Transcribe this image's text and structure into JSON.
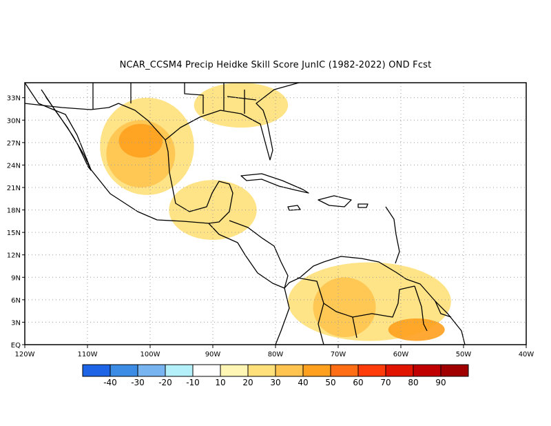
{
  "title": "NCAR_CCSM4 Precip Heidke Skill Score JunIC (1982-2022) OND Fcst",
  "map": {
    "lon_range": [
      -120,
      -40
    ],
    "lat_range": [
      0,
      35
    ],
    "lon_ticks": [
      {
        "lon": -120,
        "label": "120W"
      },
      {
        "lon": -110,
        "label": "110W"
      },
      {
        "lon": -100,
        "label": "100W"
      },
      {
        "lon": -90,
        "label": "90W"
      },
      {
        "lon": -80,
        "label": "80W"
      },
      {
        "lon": -70,
        "label": "70W"
      },
      {
        "lon": -60,
        "label": "60W"
      },
      {
        "lon": -50,
        "label": "50W"
      },
      {
        "lon": -40,
        "label": "40W"
      }
    ],
    "lat_ticks": [
      {
        "lat": 0,
        "label": "EQ"
      },
      {
        "lat": 3,
        "label": "3N"
      },
      {
        "lat": 6,
        "label": "6N"
      },
      {
        "lat": 9,
        "label": "9N"
      },
      {
        "lat": 12,
        "label": "12N"
      },
      {
        "lat": 15,
        "label": "15N"
      },
      {
        "lat": 18,
        "label": "18N"
      },
      {
        "lat": 21,
        "label": "21N"
      },
      {
        "lat": 24,
        "label": "24N"
      },
      {
        "lat": 27,
        "label": "27N"
      },
      {
        "lat": 30,
        "label": "30N"
      },
      {
        "lat": 33,
        "label": "33N"
      }
    ],
    "grid": "dotted"
  },
  "colorbar": {
    "colors": [
      "#1e64e6",
      "#3c8ce6",
      "#78b4f0",
      "#b4f0fa",
      "#ffffff",
      "#fff5b4",
      "#ffe07a",
      "#ffc450",
      "#ffa01e",
      "#ff6e14",
      "#ff3c0a",
      "#e11400",
      "#c00000",
      "#a00000"
    ],
    "labels": [
      "-40",
      "-30",
      "-20",
      "-10",
      "10",
      "20",
      "30",
      "40",
      "50",
      "60",
      "70",
      "80",
      "90"
    ]
  },
  "skill_regions": [
    {
      "level": 20,
      "lon": [
        -108,
        -93
      ],
      "lat": [
        20,
        33
      ]
    },
    {
      "level": 30,
      "lon": [
        -107,
        -96
      ],
      "lat": [
        21,
        30
      ]
    },
    {
      "level": 40,
      "lon": [
        -105,
        -98
      ],
      "lat": [
        25,
        29.5
      ]
    },
    {
      "level": 20,
      "lon": [
        -97,
        -83
      ],
      "lat": [
        14,
        22
      ]
    },
    {
      "level": 20,
      "lon": [
        -93,
        -78
      ],
      "lat": [
        29,
        35
      ]
    },
    {
      "level": 20,
      "lon": [
        -78,
        -52
      ],
      "lat": [
        0.5,
        11
      ]
    },
    {
      "level": 30,
      "lon": [
        -74,
        -64
      ],
      "lat": [
        1,
        9
      ]
    },
    {
      "level": 40,
      "lon": [
        -62,
        -53
      ],
      "lat": [
        0.5,
        3.5
      ]
    }
  ]
}
